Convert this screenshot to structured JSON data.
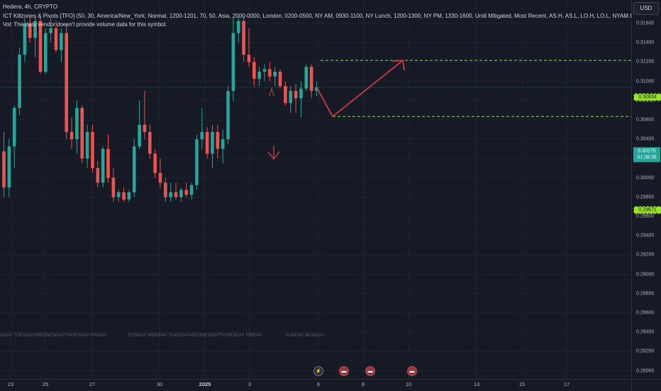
{
  "legend": {
    "title": "Hedera, 4h, CRYPTO",
    "indicator": "ICT Killzones & Pivots [TFO] (50, 30, America/New_York, Normal, 1200-1201, 70, 50, Asia, 2000-0000, London, 0200-0500, NY AM, 0930-1100, NY Lunch, 1200-1300, NY PM, 1330-1600, Until Mitigated, Most Recent, AS.H, AS.L, LO.H, LO.L, NYAM.H",
    "volume_note": "Vol: The data vendor doesn't provide volume data for this symbol."
  },
  "currency_button": "USD",
  "price_ticks": [
    "0.31600",
    "0.31400",
    "0.31200",
    "0.31000",
    "0.30800",
    "0.30600",
    "0.30400",
    "0.30200",
    "0.30000",
    "0.29800",
    "0.29600",
    "0.29400",
    "0.29200",
    "0.29000",
    "0.28800",
    "0.28600",
    "0.28400",
    "0.28200",
    "0.28000"
  ],
  "price_tags": {
    "upper_level": "0.30834",
    "current_price": "0.30275",
    "countdown": "01:38:36",
    "lower_level": "0.29671"
  },
  "time_ticks": [
    {
      "label": "23",
      "bold": false
    },
    {
      "label": "25",
      "bold": false
    },
    {
      "label": "27",
      "bold": false
    },
    {
      "label": "30",
      "bold": false
    },
    {
      "label": "2025",
      "bold": true
    },
    {
      "label": "3",
      "bold": false
    },
    {
      "label": "6",
      "bold": false
    },
    {
      "label": "8",
      "bold": false
    },
    {
      "label": "10",
      "bold": false
    },
    {
      "label": "13",
      "bold": false
    },
    {
      "label": "15",
      "bold": false
    },
    {
      "label": "17",
      "bold": false
    }
  ],
  "day_labels": [
    "NDAY TUESDAYWEDNESDAYTHURSDAY FRIDAY",
    "SUNDAY  MONDAY TUESDAYWEDNESDAYTHURSDAY FRIDAY",
    "SUNDAY  MONDAY"
  ],
  "event_icons": [
    "flash-event",
    "us-flag-event",
    "us-flag-event",
    "us-flag-event"
  ],
  "colors": {
    "background": "#161a25",
    "bull": "#26a69a",
    "bear": "#ef5350",
    "level_line": "#9be22d",
    "projection": "#b83a45",
    "current_price": "#26a69a"
  },
  "chart_data": {
    "type": "candlestick",
    "symbol": "Hedera",
    "timeframe": "4h",
    "ylim": [
      0.2798,
      0.3172
    ],
    "levels": [
      0.30834,
      0.29671
    ],
    "current_price": 0.30275,
    "projection_path": [
      [
        0.30275,
        0.29671
      ],
      [
        0.29671,
        0.30834
      ]
    ],
    "candles": [
      {
        "o": 0.2895,
        "h": 0.2935,
        "l": 0.28,
        "c": 0.282
      },
      {
        "o": 0.282,
        "h": 0.292,
        "l": 0.28,
        "c": 0.2905
      },
      {
        "o": 0.2905,
        "h": 0.299,
        "l": 0.286,
        "c": 0.2985
      },
      {
        "o": 0.2985,
        "h": 0.311,
        "l": 0.297,
        "c": 0.3095
      },
      {
        "o": 0.3095,
        "h": 0.317,
        "l": 0.308,
        "c": 0.316
      },
      {
        "o": 0.316,
        "h": 0.3172,
        "l": 0.312,
        "c": 0.313
      },
      {
        "o": 0.313,
        "h": 0.3172,
        "l": 0.309,
        "c": 0.3165
      },
      {
        "o": 0.3165,
        "h": 0.3172,
        "l": 0.3055,
        "c": 0.306
      },
      {
        "o": 0.306,
        "h": 0.315,
        "l": 0.3055,
        "c": 0.314
      },
      {
        "o": 0.314,
        "h": 0.3172,
        "l": 0.312,
        "c": 0.315
      },
      {
        "o": 0.315,
        "h": 0.3165,
        "l": 0.31,
        "c": 0.3105
      },
      {
        "o": 0.3105,
        "h": 0.315,
        "l": 0.308,
        "c": 0.314
      },
      {
        "o": 0.314,
        "h": 0.316,
        "l": 0.292,
        "c": 0.2935
      },
      {
        "o": 0.2935,
        "h": 0.2965,
        "l": 0.29,
        "c": 0.292
      },
      {
        "o": 0.292,
        "h": 0.3,
        "l": 0.289,
        "c": 0.2985
      },
      {
        "o": 0.2985,
        "h": 0.299,
        "l": 0.287,
        "c": 0.288
      },
      {
        "o": 0.288,
        "h": 0.295,
        "l": 0.286,
        "c": 0.2935
      },
      {
        "o": 0.2935,
        "h": 0.295,
        "l": 0.285,
        "c": 0.286
      },
      {
        "o": 0.286,
        "h": 0.2875,
        "l": 0.282,
        "c": 0.283
      },
      {
        "o": 0.283,
        "h": 0.2905,
        "l": 0.282,
        "c": 0.29
      },
      {
        "o": 0.29,
        "h": 0.293,
        "l": 0.283,
        "c": 0.284
      },
      {
        "o": 0.284,
        "h": 0.286,
        "l": 0.279,
        "c": 0.28
      },
      {
        "o": 0.28,
        "h": 0.2815,
        "l": 0.279,
        "c": 0.281
      },
      {
        "o": 0.281,
        "h": 0.282,
        "l": 0.279,
        "c": 0.2795
      },
      {
        "o": 0.2795,
        "h": 0.2815,
        "l": 0.279,
        "c": 0.281
      },
      {
        "o": 0.281,
        "h": 0.292,
        "l": 0.28,
        "c": 0.2905
      },
      {
        "o": 0.2905,
        "h": 0.3,
        "l": 0.29,
        "c": 0.295
      },
      {
        "o": 0.295,
        "h": 0.302,
        "l": 0.292,
        "c": 0.2935
      },
      {
        "o": 0.2935,
        "h": 0.295,
        "l": 0.288,
        "c": 0.289
      },
      {
        "o": 0.289,
        "h": 0.29,
        "l": 0.284,
        "c": 0.285
      },
      {
        "o": 0.285,
        "h": 0.288,
        "l": 0.282,
        "c": 0.283
      },
      {
        "o": 0.283,
        "h": 0.284,
        "l": 0.279,
        "c": 0.28
      },
      {
        "o": 0.28,
        "h": 0.283,
        "l": 0.279,
        "c": 0.281
      },
      {
        "o": 0.281,
        "h": 0.283,
        "l": 0.2795,
        "c": 0.28
      },
      {
        "o": 0.28,
        "h": 0.282,
        "l": 0.279,
        "c": 0.2815
      },
      {
        "o": 0.2815,
        "h": 0.283,
        "l": 0.28,
        "c": 0.2805
      },
      {
        "o": 0.2805,
        "h": 0.283,
        "l": 0.2795,
        "c": 0.2825
      },
      {
        "o": 0.2825,
        "h": 0.293,
        "l": 0.2815,
        "c": 0.292
      },
      {
        "o": 0.292,
        "h": 0.2985,
        "l": 0.29,
        "c": 0.2935
      },
      {
        "o": 0.2935,
        "h": 0.2945,
        "l": 0.288,
        "c": 0.289
      },
      {
        "o": 0.289,
        "h": 0.295,
        "l": 0.286,
        "c": 0.2935
      },
      {
        "o": 0.2935,
        "h": 0.295,
        "l": 0.288,
        "c": 0.29
      },
      {
        "o": 0.29,
        "h": 0.294,
        "l": 0.287,
        "c": 0.292
      },
      {
        "o": 0.292,
        "h": 0.303,
        "l": 0.291,
        "c": 0.302
      },
      {
        "o": 0.302,
        "h": 0.3172,
        "l": 0.3,
        "c": 0.314
      },
      {
        "o": 0.314,
        "h": 0.3172,
        "l": 0.312,
        "c": 0.3165
      },
      {
        "o": 0.3165,
        "h": 0.3172,
        "l": 0.308,
        "c": 0.3095
      },
      {
        "o": 0.3095,
        "h": 0.315,
        "l": 0.307,
        "c": 0.308
      },
      {
        "o": 0.308,
        "h": 0.309,
        "l": 0.303,
        "c": 0.3045
      },
      {
        "o": 0.3045,
        "h": 0.307,
        "l": 0.303,
        "c": 0.306
      },
      {
        "o": 0.306,
        "h": 0.3075,
        "l": 0.304,
        "c": 0.3065
      },
      {
        "o": 0.3065,
        "h": 0.308,
        "l": 0.304,
        "c": 0.305
      },
      {
        "o": 0.305,
        "h": 0.307,
        "l": 0.303,
        "c": 0.306
      },
      {
        "o": 0.306,
        "h": 0.3065,
        "l": 0.3025,
        "c": 0.303
      },
      {
        "o": 0.303,
        "h": 0.304,
        "l": 0.299,
        "c": 0.2995
      },
      {
        "o": 0.2995,
        "h": 0.303,
        "l": 0.2975,
        "c": 0.302
      },
      {
        "o": 0.302,
        "h": 0.3035,
        "l": 0.2975,
        "c": 0.3005
      },
      {
        "o": 0.3005,
        "h": 0.304,
        "l": 0.2965,
        "c": 0.3025
      },
      {
        "o": 0.3025,
        "h": 0.3075,
        "l": 0.302,
        "c": 0.307
      },
      {
        "o": 0.307,
        "h": 0.3075,
        "l": 0.3005,
        "c": 0.302
      },
      {
        "o": 0.302,
        "h": 0.304,
        "l": 0.301,
        "c": 0.30275
      }
    ]
  }
}
